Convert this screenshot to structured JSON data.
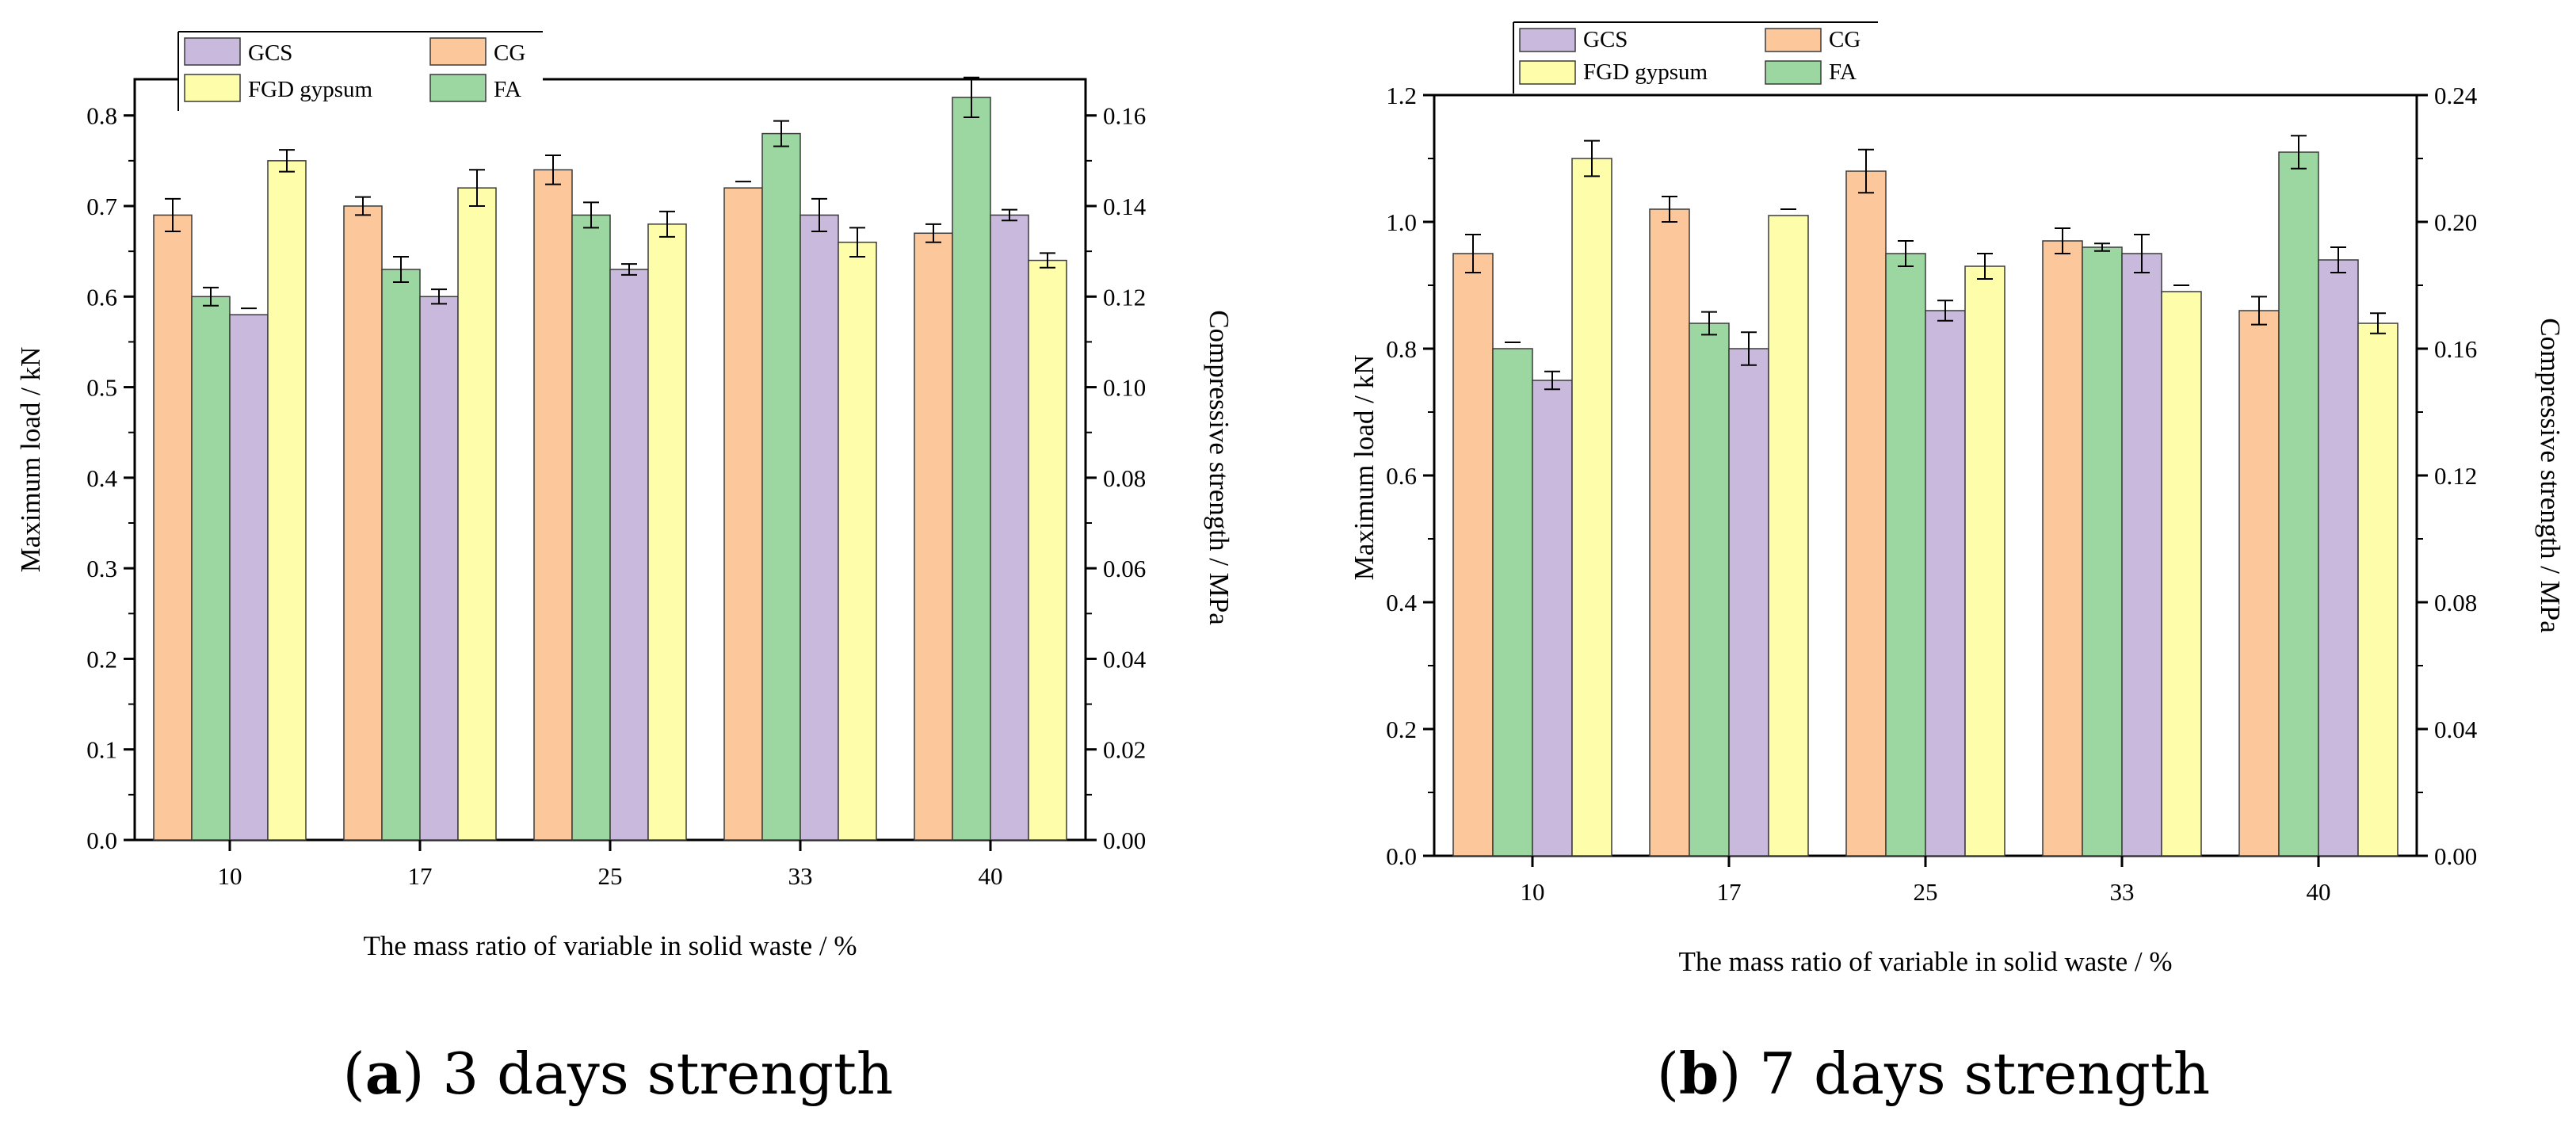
{
  "legend_order": [
    "GCS",
    "CG",
    "FGD gypsum",
    "FA"
  ],
  "chart_data": [
    {
      "type": "bar",
      "panel_label": "a",
      "caption": "3 days strength",
      "categories": [
        "10",
        "17",
        "25",
        "33",
        "40"
      ],
      "xlabel": "The mass ratio  of variable in solid waste  / %",
      "ylabel": "Maximum load / kN",
      "y2label": "Compressive strength / MPa",
      "ylim": [
        0,
        0.84
      ],
      "y2lim": [
        0,
        0.168
      ],
      "yticks": [
        "0.0",
        "0.1",
        "0.2",
        "0.3",
        "0.4",
        "0.5",
        "0.6",
        "0.7",
        "0.8"
      ],
      "y2ticks": [
        "0.00",
        "0.02",
        "0.04",
        "0.06",
        "0.08",
        "0.10",
        "0.12",
        "0.14",
        "0.16"
      ],
      "bar_order": [
        [
          "CG",
          "FA",
          "GCS",
          "FGD gypsum"
        ],
        [
          "CG",
          "FA",
          "GCS",
          "FGD gypsum"
        ],
        [
          "CG",
          "FA",
          "GCS",
          "FGD gypsum"
        ],
        [
          "CG",
          "FA",
          "GCS",
          "FGD gypsum"
        ],
        [
          "CG",
          "FA",
          "GCS",
          "FGD gypsum"
        ]
      ],
      "series": [
        {
          "name": "GCS",
          "color": "#c9b9dc",
          "values": [
            0.58,
            0.6,
            0.63,
            0.69,
            0.69
          ],
          "errors": [
            0,
            0.008,
            0.006,
            0.018,
            0.006
          ]
        },
        {
          "name": "CG",
          "color": "#fcc89b",
          "values": [
            0.69,
            0.7,
            0.74,
            0.72,
            0.67
          ],
          "errors": [
            0.018,
            0.01,
            0.016,
            0,
            0.01
          ]
        },
        {
          "name": "FGD gypsum",
          "color": "#fefeaa",
          "values": [
            0.75,
            0.72,
            0.68,
            0.66,
            0.64
          ],
          "errors": [
            0.012,
            0.02,
            0.014,
            0.016,
            0.008
          ]
        },
        {
          "name": "FA",
          "color": "#9cd6a0",
          "values": [
            0.6,
            0.63,
            0.69,
            0.78,
            0.82
          ],
          "errors": [
            0.01,
            0.014,
            0.014,
            0.014,
            0.022
          ]
        }
      ]
    },
    {
      "type": "bar",
      "panel_label": "b",
      "caption": "7 days strength",
      "categories": [
        "10",
        "17",
        "25",
        "33",
        "40"
      ],
      "xlabel": "The mass ratio of variable in solid waste  / %",
      "ylabel": "Maximum load / kN",
      "y2label": "Compressive strength / MPa",
      "ylim": [
        0,
        1.2
      ],
      "y2lim": [
        0,
        0.24
      ],
      "yticks": [
        "0.0",
        "0.2",
        "0.4",
        "0.6",
        "0.8",
        "1.0",
        "1.2"
      ],
      "y2ticks": [
        "0.00",
        "0.04",
        "0.08",
        "0.12",
        "0.16",
        "0.20",
        "0.24"
      ],
      "bar_order": [
        [
          "CG",
          "FA",
          "GCS",
          "FGD gypsum"
        ],
        [
          "CG",
          "FA",
          "GCS",
          "FGD gypsum"
        ],
        [
          "CG",
          "FA",
          "GCS",
          "FGD gypsum"
        ],
        [
          "CG",
          "FA",
          "GCS",
          "FGD gypsum"
        ],
        [
          "CG",
          "FA",
          "GCS",
          "FGD gypsum"
        ]
      ],
      "series": [
        {
          "name": "GCS",
          "color": "#c9b9dc",
          "values": [
            0.75,
            0.8,
            0.86,
            0.95,
            0.94
          ],
          "errors": [
            0.014,
            0.026,
            0.016,
            0.03,
            0.02
          ]
        },
        {
          "name": "CG",
          "color": "#fcc89b",
          "values": [
            0.95,
            1.02,
            1.08,
            0.97,
            0.86
          ],
          "errors": [
            0.03,
            0.02,
            0.034,
            0.02,
            0.022
          ]
        },
        {
          "name": "FGD gypsum",
          "color": "#fefeaa",
          "values": [
            1.1,
            1.01,
            0.93,
            0.89,
            0.84
          ],
          "errors": [
            0.028,
            0,
            0.02,
            0,
            0.016
          ]
        },
        {
          "name": "FA",
          "color": "#9cd6a0",
          "values": [
            0.8,
            0.84,
            0.95,
            0.96,
            1.11
          ],
          "errors": [
            0,
            0.018,
            0.02,
            0.006,
            0.026
          ]
        }
      ]
    }
  ]
}
